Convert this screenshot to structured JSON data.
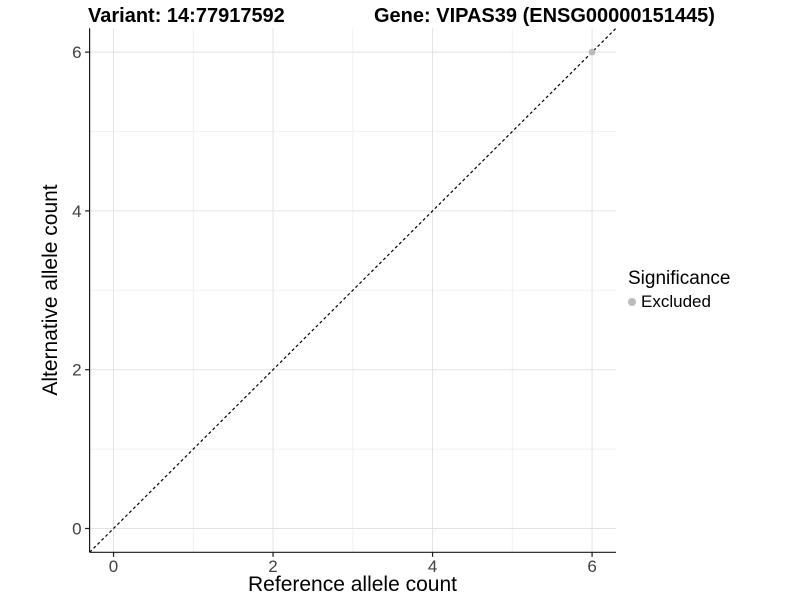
{
  "chart_data": {
    "type": "scatter",
    "titles": {
      "left": "Variant: 14:77917592",
      "right": "Gene: VIPAS39 (ENSG00000151445)"
    },
    "xlabel": "Reference allele count",
    "ylabel": "Alternative allele count",
    "xlim": [
      -0.3,
      6.3
    ],
    "ylim": [
      -0.3,
      6.3
    ],
    "xticks": [
      0,
      2,
      4,
      6
    ],
    "yticks": [
      0,
      2,
      4,
      6
    ],
    "xticks_minor": [
      1,
      3,
      5
    ],
    "yticks_minor": [
      1,
      3,
      5
    ],
    "grid": true,
    "reference_line": {
      "type": "identity",
      "slope": 1,
      "intercept": 0,
      "style": "dashed",
      "color": "#000000"
    },
    "series": [
      {
        "name": "Excluded",
        "color": "#bcbcbc",
        "points": [
          [
            6,
            6
          ]
        ]
      }
    ],
    "legend": {
      "title": "Significance",
      "position": "right",
      "entries": [
        {
          "label": "Excluded",
          "color": "#bcbcbc"
        }
      ]
    },
    "colors": {
      "grid_major": "#e3e3e3",
      "grid_minor": "#f1f1f1",
      "axis": "#1a1a1a",
      "tick_label": "#404040"
    }
  }
}
